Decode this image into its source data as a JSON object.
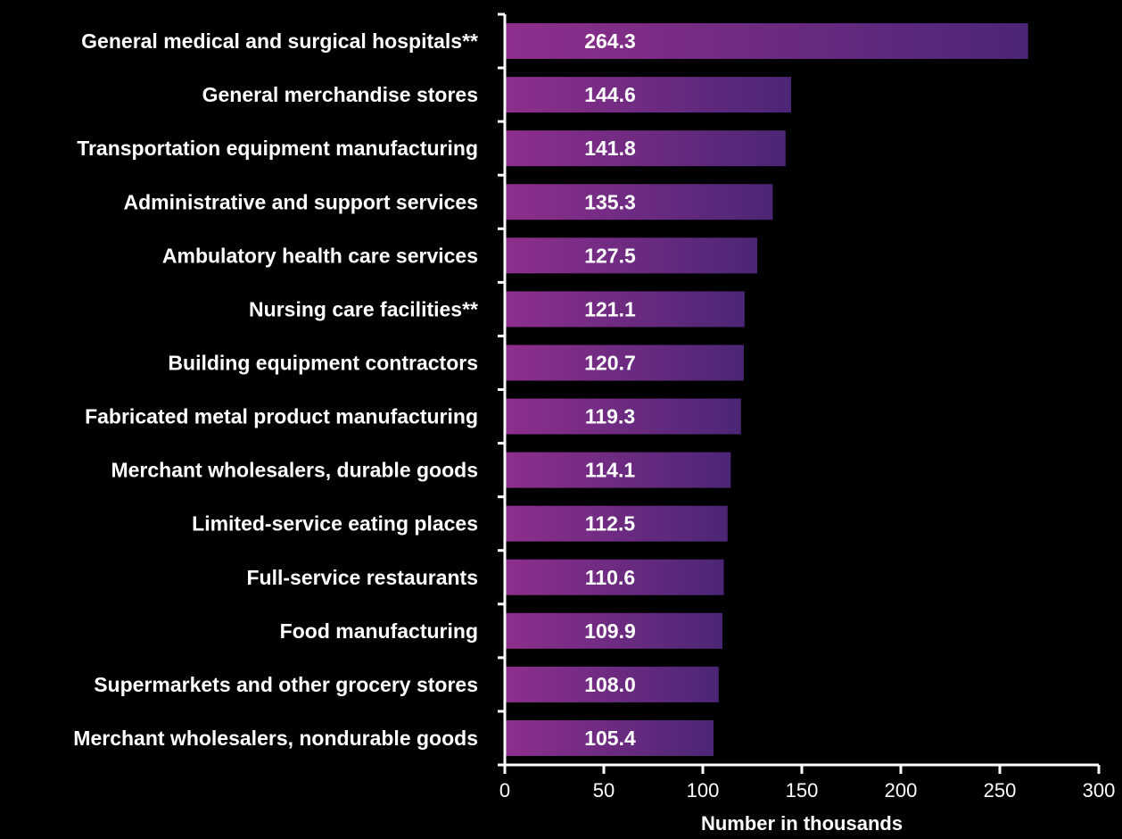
{
  "chart_data": {
    "type": "bar",
    "orientation": "horizontal",
    "title": "",
    "xlabel": "Number in thousands",
    "ylabel": "",
    "xlim": [
      0,
      300
    ],
    "xticks": [
      "0",
      "50",
      "100",
      "150",
      "200",
      "250",
      "300"
    ],
    "grid": false,
    "categories": [
      "General medical and surgical hospitals**",
      "General merchandise stores",
      "Transportation equipment manufacturing",
      "Administrative and support services",
      "Ambulatory health care services",
      "Nursing care facilities**",
      "Building equipment contractors",
      "Fabricated metal product manufacturing",
      "Merchant wholesalers, durable goods",
      "Limited-service eating places",
      "Full-service restaurants",
      "Food manufacturing",
      "Supermarkets and other grocery stores",
      "Merchant wholesalers, nondurable goods"
    ],
    "values": [
      264.3,
      144.6,
      141.8,
      135.3,
      127.5,
      121.1,
      120.7,
      119.3,
      114.1,
      112.5,
      110.6,
      109.9,
      108.0,
      105.4
    ],
    "value_labels": [
      "264.3",
      "144.6",
      "141.8",
      "135.3",
      "127.5",
      "121.1",
      "120.7",
      "119.3",
      "114.1",
      "112.5",
      "110.6",
      "109.9",
      "108.0",
      "105.4"
    ],
    "colors": {
      "bar_start": "#8e2f8c",
      "bar_end": "#4c2676",
      "text": "#ffffff",
      "axis": "#ffffff",
      "background": "#000000"
    }
  }
}
